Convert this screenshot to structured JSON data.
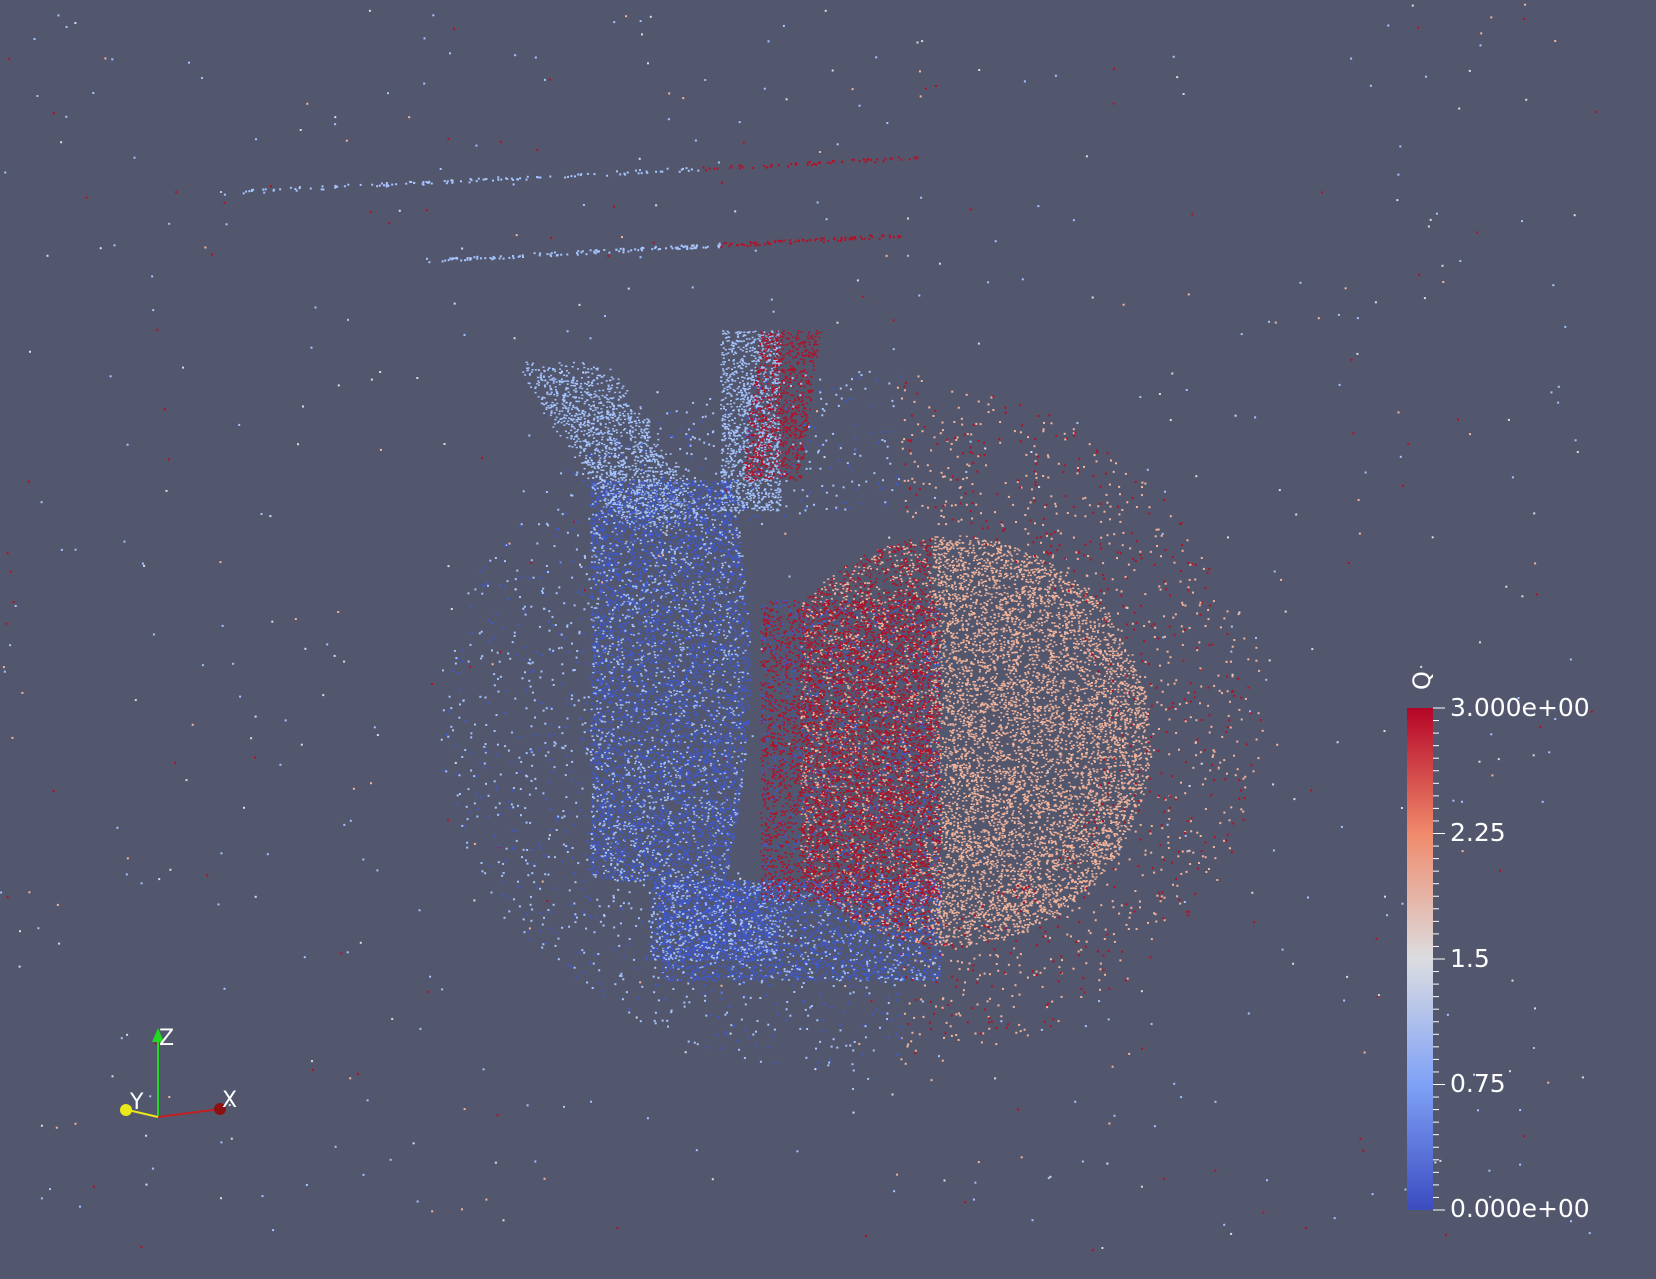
{
  "colorbar": {
    "title": "Q",
    "ticks": [
      {
        "label": "3.000e+00",
        "value": 3.0
      },
      {
        "label": "2.25",
        "value": 2.25
      },
      {
        "label": "1.5",
        "value": 1.5
      },
      {
        "label": "0.75",
        "value": 0.75
      },
      {
        "label": "0.000e+00",
        "value": 0.0
      }
    ],
    "range": [
      0,
      3
    ],
    "colors": {
      "low": "#3b4cc0",
      "mid": "#dddddd",
      "high": "#b40426"
    }
  },
  "axes": {
    "x_label": "X",
    "y_label": "Y",
    "z_label": "Z",
    "x_color": "#c41f1f",
    "y_color": "#e8e81a",
    "z_color": "#22d822"
  },
  "background_color": "#52576e"
}
